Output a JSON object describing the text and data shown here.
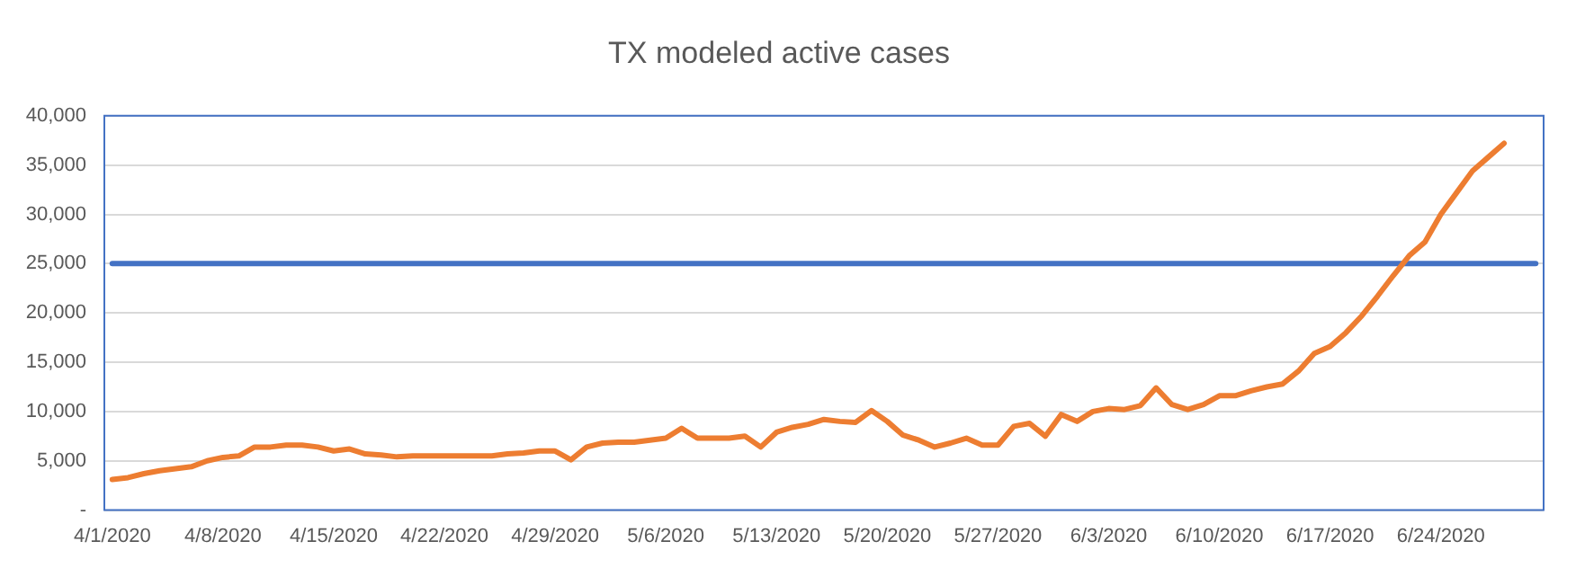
{
  "chart_data": {
    "type": "line",
    "title": "TX modeled active cases",
    "categories": [
      "4/1/2020",
      null,
      null,
      null,
      null,
      null,
      null,
      "4/8/2020",
      null,
      null,
      null,
      null,
      null,
      null,
      "4/15/2020",
      null,
      null,
      null,
      null,
      null,
      null,
      "4/22/2020",
      null,
      null,
      null,
      null,
      null,
      null,
      "4/29/2020",
      null,
      null,
      null,
      null,
      null,
      null,
      "5/6/2020",
      null,
      null,
      null,
      null,
      null,
      null,
      "5/13/2020",
      null,
      null,
      null,
      null,
      null,
      null,
      "5/20/2020",
      null,
      null,
      null,
      null,
      null,
      null,
      "5/27/2020",
      null,
      null,
      null,
      null,
      null,
      null,
      "6/3/2020",
      null,
      null,
      null,
      null,
      null,
      null,
      "6/10/2020",
      null,
      null,
      null,
      null,
      null,
      null,
      "6/17/2020",
      null,
      null,
      null,
      null,
      null,
      null,
      "6/24/2020",
      null,
      null,
      null,
      null,
      null,
      null
    ],
    "series": [
      {
        "color": "#ed7d31",
        "values": [
          3100,
          3300,
          3700,
          4000,
          4200,
          4400,
          5000,
          5350,
          5500,
          6400,
          6400,
          6600,
          6600,
          6400,
          6000,
          6200,
          5700,
          5600,
          5400,
          5500,
          5500,
          5500,
          5500,
          5500,
          5500,
          5700,
          5800,
          6000,
          6000,
          5100,
          6400,
          6800,
          6900,
          6900,
          7100,
          7300,
          8300,
          7300,
          7300,
          7300,
          7500,
          6400,
          7900,
          8400,
          8700,
          9200,
          9000,
          8900,
          10100,
          9000,
          7600,
          7100,
          6400,
          6800,
          7300,
          6600,
          6600,
          8500,
          8800,
          7500,
          9700,
          9000,
          10000,
          10300,
          10200,
          10600,
          12400,
          10700,
          10200,
          10700,
          11600,
          11600,
          12100,
          12500,
          12800,
          14100,
          15900,
          16600,
          18000,
          19700,
          21700,
          23800,
          25800,
          27200,
          30000,
          32200,
          34400,
          35800,
          37200,
          null,
          null
        ]
      },
      {
        "color": "#4472c4",
        "values": [
          25000,
          25000,
          25000,
          25000,
          25000,
          25000,
          25000,
          25000,
          25000,
          25000,
          25000,
          25000,
          25000,
          25000,
          25000,
          25000,
          25000,
          25000,
          25000,
          25000,
          25000,
          25000,
          25000,
          25000,
          25000,
          25000,
          25000,
          25000,
          25000,
          25000,
          25000,
          25000,
          25000,
          25000,
          25000,
          25000,
          25000,
          25000,
          25000,
          25000,
          25000,
          25000,
          25000,
          25000,
          25000,
          25000,
          25000,
          25000,
          25000,
          25000,
          25000,
          25000,
          25000,
          25000,
          25000,
          25000,
          25000,
          25000,
          25000,
          25000,
          25000,
          25000,
          25000,
          25000,
          25000,
          25000,
          25000,
          25000,
          25000,
          25000,
          25000,
          25000,
          25000,
          25000,
          25000,
          25000,
          25000,
          25000,
          25000,
          25000,
          25000,
          25000,
          25000,
          25000,
          25000,
          25000,
          25000,
          25000,
          25000,
          25000,
          25000
        ]
      }
    ],
    "ylim": [
      0,
      40000
    ],
    "yticks": [
      {
        "value": 0,
        "label": "-"
      },
      {
        "value": 5000,
        "label": "5,000"
      },
      {
        "value": 10000,
        "label": "10,000"
      },
      {
        "value": 15000,
        "label": "15,000"
      },
      {
        "value": 20000,
        "label": "20,000"
      },
      {
        "value": 25000,
        "label": "25,000"
      },
      {
        "value": 30000,
        "label": "30,000"
      },
      {
        "value": 35000,
        "label": "35,000"
      },
      {
        "value": 40000,
        "label": "40,000"
      }
    ],
    "grid": "y",
    "legend": false,
    "marker": "none",
    "line_style": "solid"
  }
}
